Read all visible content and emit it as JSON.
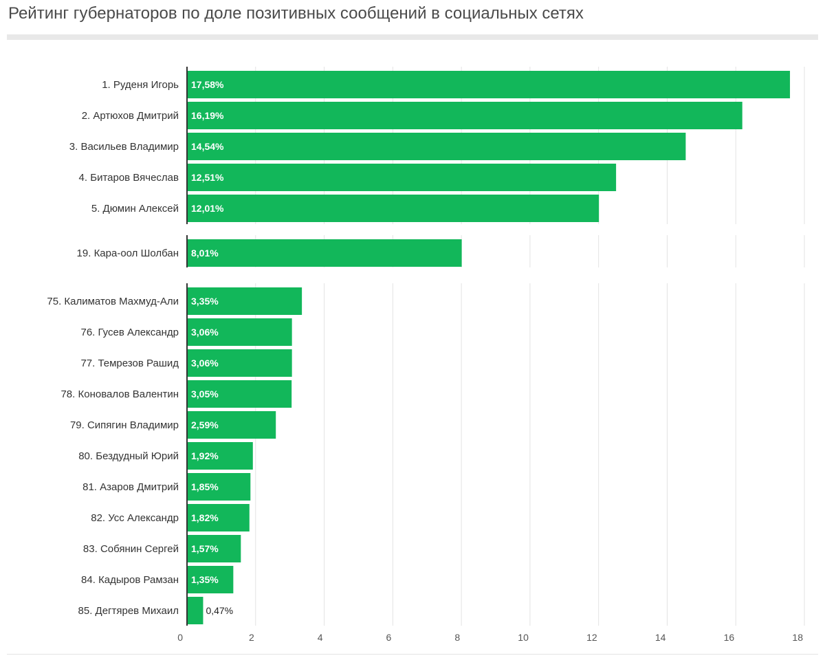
{
  "chart_data": {
    "type": "bar",
    "orientation": "horizontal",
    "title": "Рейтинг губернаторов по доле позитивных сообщений в социальных сетях",
    "xlim": [
      0,
      18
    ],
    "ticks": [
      "0",
      "2",
      "4",
      "6",
      "8",
      "10",
      "12",
      "14",
      "16",
      "18"
    ],
    "grid": true,
    "bar_color": "#12b75a",
    "groups": [
      {
        "items": [
          {
            "label": "1. Руденя Игорь",
            "value": 17.58,
            "display": "17,58%"
          },
          {
            "label": "2. Артюхов Дмитрий",
            "value": 16.19,
            "display": "16,19%"
          },
          {
            "label": "3. Васильев Владимир",
            "value": 14.54,
            "display": "14,54%"
          },
          {
            "label": "4. Битаров Вячеслав",
            "value": 12.51,
            "display": "12,51%"
          },
          {
            "label": "5. Дюмин Алексей",
            "value": 12.01,
            "display": "12,01%"
          }
        ]
      },
      {
        "items": [
          {
            "label": "19. Кара-оол Шолбан",
            "value": 8.01,
            "display": "8,01%"
          }
        ]
      },
      {
        "items": [
          {
            "label": "75. Калиматов Махмуд-Али",
            "value": 3.35,
            "display": "3,35%"
          },
          {
            "label": "76. Гусев Александр",
            "value": 3.06,
            "display": "3,06%"
          },
          {
            "label": "77. Темрезов Рашид",
            "value": 3.06,
            "display": "3,06%"
          },
          {
            "label": "78. Коновалов Валентин",
            "value": 3.05,
            "display": "3,05%"
          },
          {
            "label": "79. Сипягин Владимир",
            "value": 2.59,
            "display": "2,59%"
          },
          {
            "label": "80. Бездудный Юрий",
            "value": 1.92,
            "display": "1,92%"
          },
          {
            "label": "81. Азаров Дмитрий",
            "value": 1.85,
            "display": "1,85%"
          },
          {
            "label": "82. Усс Александр",
            "value": 1.82,
            "display": "1,82%"
          },
          {
            "label": "83. Собянин Сергей",
            "value": 1.57,
            "display": "1,57%"
          },
          {
            "label": "84. Кадыров Рамзан",
            "value": 1.35,
            "display": "1,35%"
          },
          {
            "label": "85. Дегтярев Михаил",
            "value": 0.47,
            "display": "0,47%"
          }
        ]
      }
    ]
  }
}
